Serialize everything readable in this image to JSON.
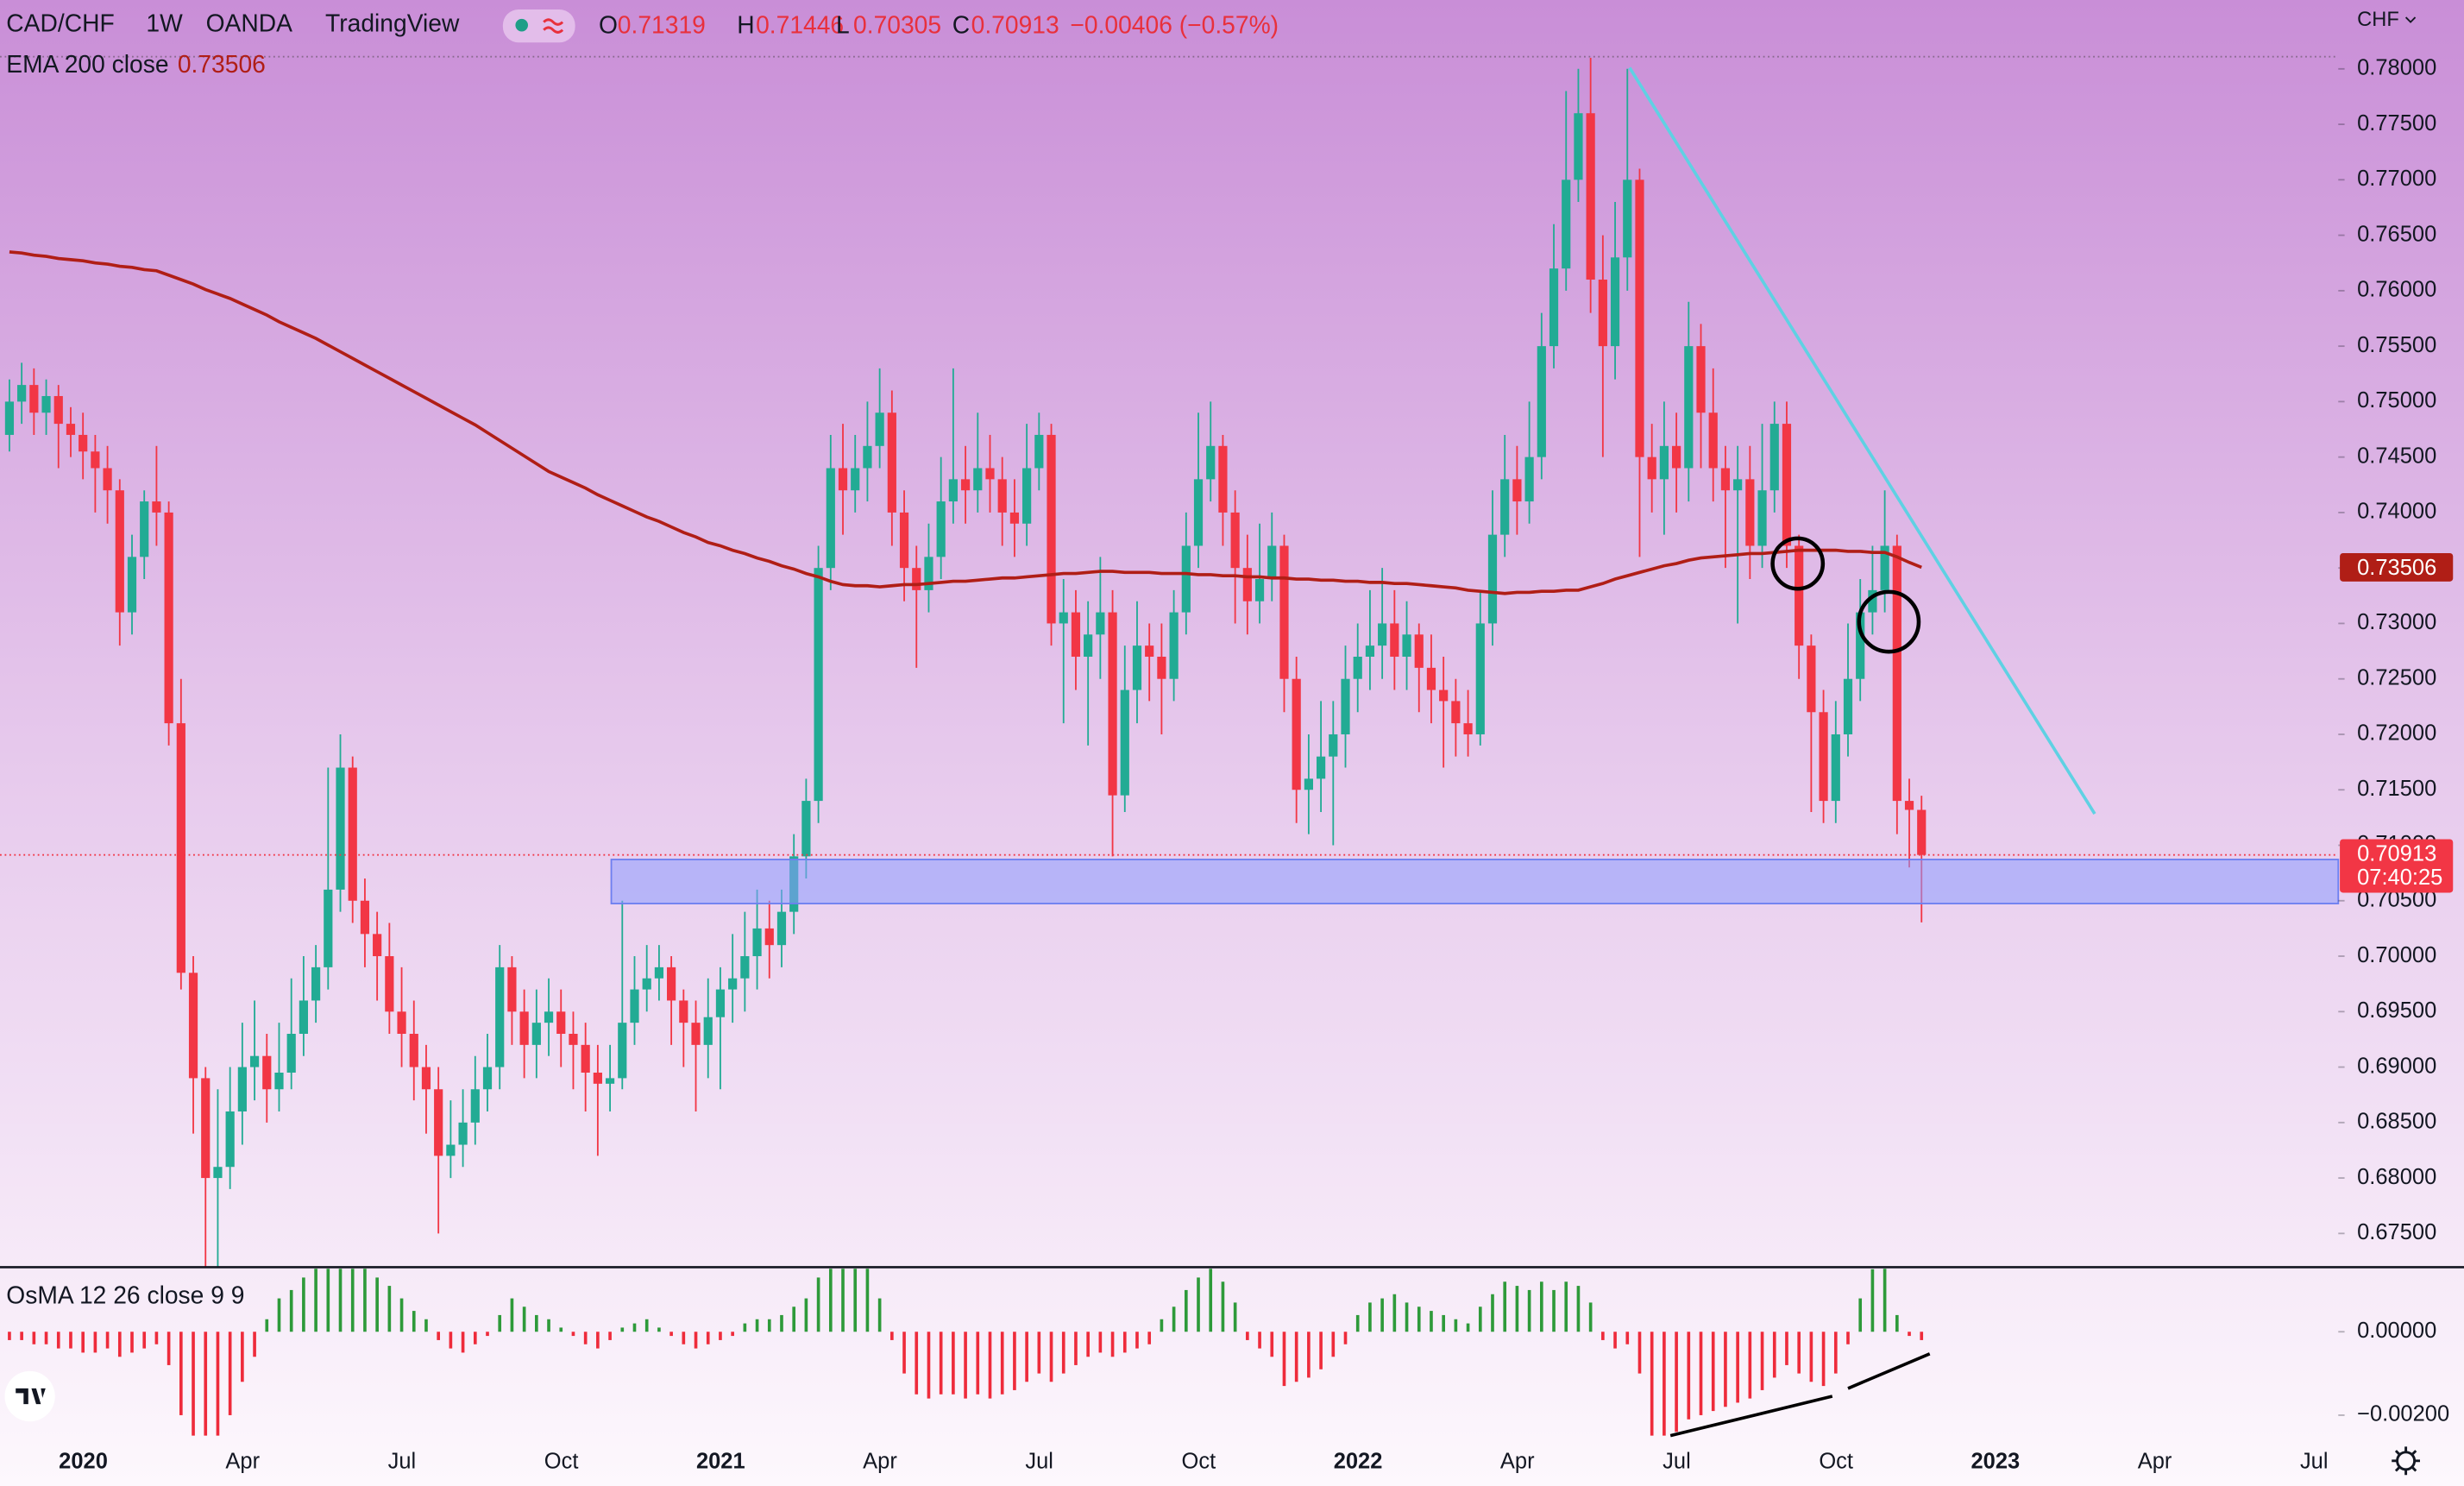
{
  "chart_data": {
    "type": "candlestick",
    "symbol": "CAD/CHF",
    "interval": "1W",
    "broker": "OANDA",
    "source": "TradingView",
    "ohlc_labels": [
      "O",
      "H",
      "L",
      "C"
    ],
    "change": "−0.00406 (−0.57%)",
    "currency": "CHF",
    "countdown": "07:40:25",
    "up_color": "#22ab94",
    "down_color": "#f23645",
    "open": [
      0.747,
      0.75,
      0.7515,
      0.749,
      0.7505,
      0.748,
      0.747,
      0.7455,
      0.744,
      0.742,
      0.731,
      0.736,
      0.741,
      0.74,
      0.721,
      0.6985,
      0.689,
      0.68,
      0.681,
      0.686,
      0.69,
      0.691,
      0.688,
      0.6895,
      0.693,
      0.696,
      0.699,
      0.706,
      0.717,
      0.705,
      0.702,
      0.7,
      0.695,
      0.693,
      0.69,
      0.688,
      0.682,
      0.683,
      0.685,
      0.688,
      0.69,
      0.699,
      0.695,
      0.692,
      0.694,
      0.695,
      0.693,
      0.692,
      0.6895,
      0.6885,
      0.689,
      0.694,
      0.697,
      0.698,
      0.699,
      0.696,
      0.694,
      0.692,
      0.6945,
      0.697,
      0.698,
      0.7,
      0.7025,
      0.701,
      0.704,
      0.709,
      0.714,
      0.735,
      0.744,
      0.742,
      0.744,
      0.746,
      0.749,
      0.74,
      0.735,
      0.733,
      0.736,
      0.741,
      0.743,
      0.742,
      0.744,
      0.743,
      0.74,
      0.739,
      0.744,
      0.747,
      0.73,
      0.731,
      0.727,
      0.729,
      0.731,
      0.7145,
      0.724,
      0.728,
      0.727,
      0.725,
      0.731,
      0.737,
      0.743,
      0.746,
      0.74,
      0.735,
      0.732,
      0.734,
      0.737,
      0.725,
      0.715,
      0.716,
      0.718,
      0.72,
      0.725,
      0.727,
      0.728,
      0.73,
      0.727,
      0.729,
      0.726,
      0.724,
      0.723,
      0.721,
      0.72,
      0.73,
      0.738,
      0.743,
      0.741,
      0.745,
      0.755,
      0.762,
      0.77,
      0.776,
      0.761,
      0.755,
      0.763,
      0.77,
      0.745,
      0.743,
      0.746,
      0.744,
      0.755,
      0.749,
      0.744,
      0.742,
      0.743,
      0.737,
      0.742,
      0.748,
      0.737,
      0.728,
      0.722,
      0.714,
      0.72,
      0.725,
      0.731,
      0.733,
      0.737,
      0.714,
      0.71319
    ],
    "high": [
      0.752,
      0.7535,
      0.753,
      0.752,
      0.7515,
      0.7495,
      0.749,
      0.747,
      0.746,
      0.743,
      0.738,
      0.742,
      0.746,
      0.741,
      0.725,
      0.7,
      0.69,
      0.688,
      0.69,
      0.694,
      0.696,
      0.693,
      0.694,
      0.698,
      0.7,
      0.701,
      0.717,
      0.72,
      0.718,
      0.707,
      0.704,
      0.703,
      0.699,
      0.696,
      0.692,
      0.69,
      0.687,
      0.688,
      0.691,
      0.693,
      0.701,
      0.7,
      0.697,
      0.697,
      0.698,
      0.697,
      0.695,
      0.694,
      0.692,
      0.692,
      0.705,
      0.7,
      0.701,
      0.701,
      0.7,
      0.697,
      0.696,
      0.698,
      0.699,
      0.702,
      0.704,
      0.706,
      0.705,
      0.706,
      0.711,
      0.716,
      0.737,
      0.747,
      0.748,
      0.747,
      0.75,
      0.753,
      0.751,
      0.742,
      0.737,
      0.739,
      0.745,
      0.753,
      0.746,
      0.749,
      0.747,
      0.745,
      0.743,
      0.748,
      0.749,
      0.748,
      0.734,
      0.733,
      0.732,
      0.736,
      0.733,
      0.728,
      0.732,
      0.73,
      0.73,
      0.733,
      0.74,
      0.749,
      0.75,
      0.747,
      0.742,
      0.738,
      0.739,
      0.74,
      0.738,
      0.727,
      0.72,
      0.723,
      0.723,
      0.728,
      0.73,
      0.733,
      0.735,
      0.733,
      0.732,
      0.73,
      0.729,
      0.727,
      0.725,
      0.724,
      0.733,
      0.742,
      0.747,
      0.746,
      0.75,
      0.758,
      0.766,
      0.778,
      0.78,
      0.781,
      0.765,
      0.768,
      0.78,
      0.771,
      0.748,
      0.75,
      0.749,
      0.759,
      0.757,
      0.753,
      0.746,
      0.746,
      0.746,
      0.748,
      0.75,
      0.75,
      0.738,
      0.729,
      0.724,
      0.723,
      0.73,
      0.734,
      0.737,
      0.742,
      0.738,
      0.716,
      0.71446
    ],
    "low": [
      0.7455,
      0.748,
      0.747,
      0.747,
      0.744,
      0.745,
      0.743,
      0.74,
      0.739,
      0.728,
      0.729,
      0.734,
      0.737,
      0.719,
      0.697,
      0.684,
      0.672,
      0.6712,
      0.679,
      0.683,
      0.687,
      0.685,
      0.686,
      0.688,
      0.691,
      0.694,
      0.697,
      0.704,
      0.703,
      0.699,
      0.696,
      0.693,
      0.69,
      0.687,
      0.684,
      0.675,
      0.68,
      0.681,
      0.683,
      0.686,
      0.688,
      0.692,
      0.689,
      0.689,
      0.691,
      0.69,
      0.688,
      0.686,
      0.682,
      0.686,
      0.688,
      0.692,
      0.695,
      0.696,
      0.692,
      0.69,
      0.686,
      0.689,
      0.688,
      0.694,
      0.695,
      0.697,
      0.698,
      0.699,
      0.702,
      0.707,
      0.712,
      0.733,
      0.738,
      0.74,
      0.741,
      0.744,
      0.737,
      0.732,
      0.726,
      0.731,
      0.734,
      0.739,
      0.739,
      0.74,
      0.74,
      0.737,
      0.736,
      0.737,
      0.742,
      0.728,
      0.721,
      0.724,
      0.719,
      0.725,
      0.709,
      0.713,
      0.721,
      0.723,
      0.72,
      0.723,
      0.729,
      0.735,
      0.741,
      0.737,
      0.73,
      0.729,
      0.73,
      0.732,
      0.722,
      0.712,
      0.711,
      0.713,
      0.71,
      0.717,
      0.722,
      0.724,
      0.725,
      0.724,
      0.724,
      0.722,
      0.721,
      0.717,
      0.718,
      0.718,
      0.719,
      0.728,
      0.736,
      0.738,
      0.739,
      0.743,
      0.753,
      0.76,
      0.768,
      0.758,
      0.745,
      0.752,
      0.76,
      0.736,
      0.74,
      0.738,
      0.74,
      0.741,
      0.744,
      0.741,
      0.735,
      0.73,
      0.734,
      0.735,
      0.74,
      0.735,
      0.725,
      0.713,
      0.712,
      0.712,
      0.718,
      0.723,
      0.729,
      0.731,
      0.711,
      0.708,
      0.70305
    ],
    "close": [
      0.75,
      0.7515,
      0.749,
      0.7505,
      0.748,
      0.747,
      0.7455,
      0.744,
      0.742,
      0.731,
      0.736,
      0.741,
      0.74,
      0.721,
      0.6985,
      0.689,
      0.68,
      0.681,
      0.686,
      0.69,
      0.691,
      0.688,
      0.6895,
      0.693,
      0.696,
      0.699,
      0.706,
      0.717,
      0.705,
      0.702,
      0.7,
      0.695,
      0.693,
      0.69,
      0.688,
      0.682,
      0.683,
      0.685,
      0.688,
      0.69,
      0.699,
      0.695,
      0.692,
      0.694,
      0.695,
      0.693,
      0.692,
      0.6895,
      0.6885,
      0.689,
      0.694,
      0.697,
      0.698,
      0.699,
      0.696,
      0.694,
      0.692,
      0.6945,
      0.697,
      0.698,
      0.7,
      0.7025,
      0.701,
      0.704,
      0.709,
      0.714,
      0.735,
      0.744,
      0.742,
      0.744,
      0.746,
      0.749,
      0.74,
      0.735,
      0.733,
      0.736,
      0.741,
      0.743,
      0.742,
      0.744,
      0.743,
      0.74,
      0.739,
      0.744,
      0.747,
      0.73,
      0.731,
      0.727,
      0.729,
      0.731,
      0.7145,
      0.724,
      0.728,
      0.727,
      0.725,
      0.731,
      0.737,
      0.743,
      0.746,
      0.74,
      0.735,
      0.732,
      0.734,
      0.737,
      0.725,
      0.715,
      0.716,
      0.718,
      0.72,
      0.725,
      0.727,
      0.728,
      0.73,
      0.727,
      0.729,
      0.726,
      0.724,
      0.723,
      0.721,
      0.72,
      0.73,
      0.738,
      0.743,
      0.741,
      0.745,
      0.755,
      0.762,
      0.77,
      0.776,
      0.761,
      0.755,
      0.763,
      0.77,
      0.745,
      0.743,
      0.746,
      0.744,
      0.755,
      0.749,
      0.744,
      0.742,
      0.743,
      0.737,
      0.742,
      0.748,
      0.737,
      0.728,
      0.722,
      0.714,
      0.72,
      0.725,
      0.731,
      0.733,
      0.737,
      0.714,
      0.71319,
      0.70913
    ],
    "ylim": [
      0.6721,
      0.7811
    ],
    "yticks": [
      {
        "value": 0.675,
        "label": "0.67500"
      },
      {
        "value": 0.68,
        "label": "0.68000"
      },
      {
        "value": 0.685,
        "label": "0.68500"
      },
      {
        "value": 0.69,
        "label": "0.69000"
      },
      {
        "value": 0.695,
        "label": "0.69500"
      },
      {
        "value": 0.7,
        "label": "0.70000"
      },
      {
        "value": 0.705,
        "label": "0.70500"
      },
      {
        "value": 0.71,
        "label": "0.71000"
      },
      {
        "value": 0.715,
        "label": "0.71500"
      },
      {
        "value": 0.72,
        "label": "0.72000"
      },
      {
        "value": 0.725,
        "label": "0.72500"
      },
      {
        "value": 0.73,
        "label": "0.73000"
      },
      {
        "value": 0.735,
        "label": "0.73500"
      },
      {
        "value": 0.74,
        "label": "0.74000"
      },
      {
        "value": 0.745,
        "label": "0.74500"
      },
      {
        "value": 0.75,
        "label": "0.75000"
      },
      {
        "value": 0.755,
        "label": "0.75500"
      },
      {
        "value": 0.76,
        "label": "0.76000"
      },
      {
        "value": 0.765,
        "label": "0.76500"
      },
      {
        "value": 0.77,
        "label": "0.77000"
      },
      {
        "value": 0.775,
        "label": "0.77500"
      },
      {
        "value": 0.78,
        "label": "0.78000"
      }
    ],
    "x_labels": [
      "2020",
      "Apr",
      "Jul",
      "Oct",
      "2021",
      "Apr",
      "Jul",
      "Oct",
      "2022",
      "Apr",
      "Jul",
      "Oct",
      "2023",
      "Apr",
      "Jul"
    ],
    "overlays": [
      {
        "name": "EMA 200 close",
        "color": "#b01e16",
        "values": [
          0.7635,
          0.7634,
          0.7632,
          0.7631,
          0.7629,
          0.7628,
          0.7627,
          0.7625,
          0.7624,
          0.7622,
          0.7621,
          0.7619,
          0.7618,
          0.7614,
          0.761,
          0.7606,
          0.7601,
          0.7597,
          0.7593,
          0.7588,
          0.7583,
          0.7578,
          0.7572,
          0.7567,
          0.7562,
          0.7557,
          0.7551,
          0.7545,
          0.7539,
          0.7533,
          0.7527,
          0.7521,
          0.7515,
          0.7509,
          0.7503,
          0.7497,
          0.7491,
          0.7485,
          0.7479,
          0.7472,
          0.7465,
          0.7458,
          0.7451,
          0.7444,
          0.7437,
          0.7432,
          0.7427,
          0.7422,
          0.7416,
          0.7411,
          0.7406,
          0.7401,
          0.7396,
          0.7392,
          0.7387,
          0.7382,
          0.7378,
          0.7373,
          0.737,
          0.7366,
          0.7363,
          0.7359,
          0.7356,
          0.7352,
          0.7349,
          0.7345,
          0.7342,
          0.7338,
          0.7335,
          0.7334,
          0.7334,
          0.7333,
          0.7334,
          0.7335,
          0.7335,
          0.7336,
          0.7337,
          0.7338,
          0.7338,
          0.7339,
          0.734,
          0.7341,
          0.7341,
          0.7342,
          0.7343,
          0.7344,
          0.7345,
          0.7345,
          0.7346,
          0.7347,
          0.7347,
          0.7346,
          0.7346,
          0.7346,
          0.7345,
          0.7345,
          0.7345,
          0.7344,
          0.7344,
          0.7343,
          0.7343,
          0.7342,
          0.7342,
          0.7341,
          0.7341,
          0.734,
          0.734,
          0.7339,
          0.7339,
          0.7338,
          0.7338,
          0.7337,
          0.7337,
          0.7336,
          0.7336,
          0.7335,
          0.7334,
          0.7333,
          0.7332,
          0.733,
          0.7329,
          0.7328,
          0.7327,
          0.7328,
          0.7328,
          0.7329,
          0.7329,
          0.733,
          0.733,
          0.7333,
          0.7336,
          0.734,
          0.7343,
          0.7346,
          0.7349,
          0.7352,
          0.7354,
          0.7357,
          0.7359,
          0.736,
          0.7361,
          0.7362,
          0.7363,
          0.7363,
          0.7364,
          0.7365,
          0.7366,
          0.7366,
          0.7366,
          0.7366,
          0.7365,
          0.7365,
          0.7364,
          0.7364,
          0.736,
          0.7355,
          0.73506
        ]
      }
    ],
    "indicator": {
      "type": "bar",
      "name": "OsMA 12 26 close 9 9",
      "up_color": "#2e9a3a",
      "down_color": "#ee2b3b",
      "values": [
        -0.0002,
        -0.0002,
        -0.0003,
        -0.0003,
        -0.0004,
        -0.0004,
        -0.0005,
        -0.0005,
        -0.0004,
        -0.0006,
        -0.0005,
        -0.0004,
        -0.0003,
        -0.0008,
        -0.002,
        -0.0025,
        -0.0025,
        -0.0025,
        -0.002,
        -0.0012,
        -0.0006,
        0.0003,
        0.0008,
        0.001,
        0.0013,
        0.0016,
        0.0016,
        0.0016,
        0.0016,
        0.0016,
        0.0013,
        0.0011,
        0.0008,
        0.0005,
        0.0003,
        -0.0002,
        -0.0004,
        -0.0005,
        -0.0003,
        -0.0001,
        0.0004,
        0.0008,
        0.0006,
        0.0004,
        0.0003,
        0.0001,
        -0.0001,
        -0.0003,
        -0.0004,
        -0.0002,
        0.0001,
        0.0002,
        0.0003,
        0.0001,
        -0.0001,
        -0.0003,
        -0.0004,
        -0.0003,
        -0.0002,
        -0.0001,
        0.0002,
        0.0003,
        0.0003,
        0.0004,
        0.0006,
        0.0008,
        0.0013,
        0.0016,
        0.0016,
        0.0016,
        0.0016,
        0.0008,
        -0.0002,
        -0.001,
        -0.0015,
        -0.0016,
        -0.0015,
        -0.0015,
        -0.0016,
        -0.0015,
        -0.0016,
        -0.0015,
        -0.0014,
        -0.0012,
        -0.001,
        -0.0012,
        -0.001,
        -0.0008,
        -0.0006,
        -0.0005,
        -0.0006,
        -0.0005,
        -0.0004,
        -0.0003,
        0.0003,
        0.0006,
        0.001,
        0.0013,
        0.0016,
        0.0012,
        0.0007,
        -0.0002,
        -0.0004,
        -0.0006,
        -0.0013,
        -0.0012,
        -0.0011,
        -0.0009,
        -0.0006,
        -0.0003,
        0.0004,
        0.0007,
        0.0008,
        0.0009,
        0.0007,
        0.0006,
        0.0005,
        0.0004,
        0.0003,
        0.0002,
        0.0006,
        0.0009,
        0.0012,
        0.0011,
        0.001,
        0.0012,
        0.001,
        0.0012,
        0.0011,
        0.0007,
        -0.0002,
        -0.0004,
        -0.0003,
        -0.001,
        -0.0025,
        -0.0025,
        -0.0024,
        -0.0021,
        -0.002,
        -0.0019,
        -0.0018,
        -0.0017,
        -0.0016,
        -0.0014,
        -0.0011,
        -0.0008,
        -0.001,
        -0.0012,
        -0.0013,
        -0.001,
        -0.0003,
        0.0008,
        0.0015,
        0.0016,
        0.0004,
        -0.0001,
        -0.0002
      ],
      "ylim": [
        -0.00249,
        0.00151
      ],
      "yticks": [
        {
          "value": 0,
          "label": "0.00000"
        },
        {
          "value": -0.002,
          "label": "−0.00200"
        }
      ]
    }
  }
}
